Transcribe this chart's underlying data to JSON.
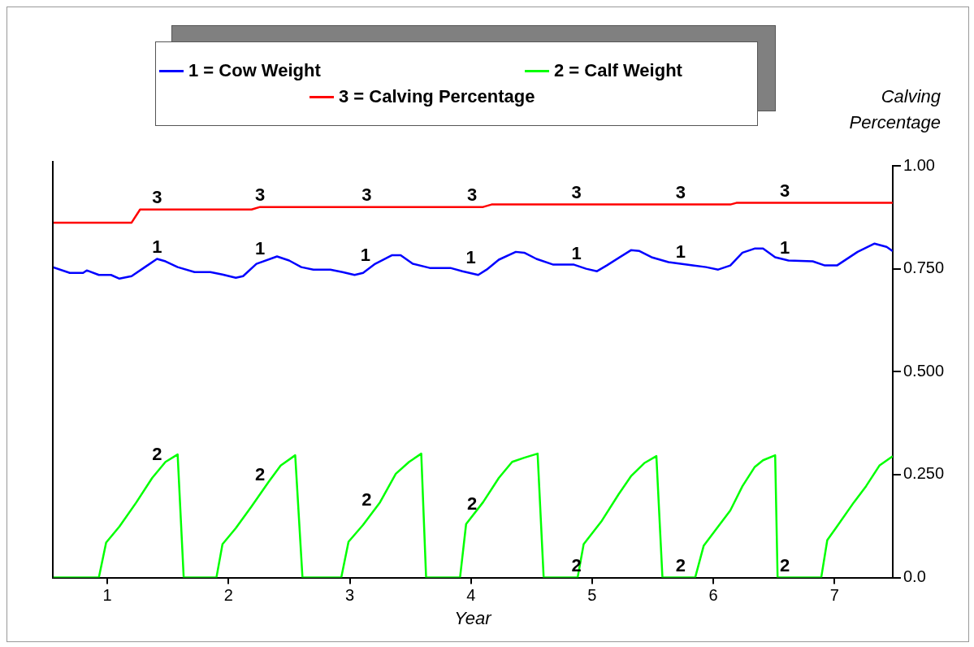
{
  "chart_data": {
    "type": "line",
    "xlabel": "Year",
    "ylabel": "Calving Percentage",
    "xlim": [
      0.55,
      7.48
    ],
    "xticks": [
      1,
      2,
      3,
      4,
      5,
      6,
      7
    ],
    "ylim": [
      0,
      1
    ],
    "yticks": [
      {
        "value": 0,
        "label": "0.0"
      },
      {
        "value": 0.25,
        "label": "0.250"
      },
      {
        "value": 0.5,
        "label": "0.500"
      },
      {
        "value": 0.75,
        "label": "0.750"
      },
      {
        "value": 1,
        "label": "1.00"
      }
    ],
    "grid": false,
    "legend": "top",
    "series": [
      {
        "name": "1 = Cow Weight",
        "color": "#0000ff",
        "x": [
          0.55,
          0.69,
          0.8,
          0.83,
          0.93,
          1.03,
          1.1,
          1.2,
          1.31,
          1.41,
          1.48,
          1.58,
          1.72,
          1.85,
          1.95,
          2.06,
          2.12,
          2.23,
          2.4,
          2.5,
          2.6,
          2.7,
          2.84,
          2.94,
          3.04,
          3.11,
          3.21,
          3.35,
          3.42,
          3.52,
          3.66,
          3.83,
          3.93,
          4.06,
          4.13,
          4.23,
          4.37,
          4.44,
          4.54,
          4.68,
          4.85,
          4.95,
          5.04,
          5.12,
          5.32,
          5.39,
          5.49,
          5.63,
          5.73,
          5.83,
          5.94,
          6.04,
          6.14,
          6.24,
          6.34,
          6.41,
          6.51,
          6.62,
          6.82,
          6.92,
          7.02,
          7.19,
          7.33,
          7.43,
          7.48
        ],
        "values": [
          0.754,
          0.74,
          0.74,
          0.746,
          0.735,
          0.735,
          0.726,
          0.732,
          0.754,
          0.774,
          0.768,
          0.754,
          0.742,
          0.742,
          0.736,
          0.728,
          0.732,
          0.762,
          0.78,
          0.77,
          0.754,
          0.748,
          0.748,
          0.742,
          0.735,
          0.74,
          0.762,
          0.783,
          0.783,
          0.762,
          0.752,
          0.752,
          0.744,
          0.735,
          0.748,
          0.772,
          0.791,
          0.789,
          0.774,
          0.76,
          0.76,
          0.75,
          0.744,
          0.758,
          0.795,
          0.793,
          0.778,
          0.766,
          0.762,
          0.758,
          0.754,
          0.748,
          0.758,
          0.789,
          0.799,
          0.799,
          0.778,
          0.77,
          0.768,
          0.758,
          0.758,
          0.791,
          0.811,
          0.803,
          0.793
        ]
      },
      {
        "name": "2 = Calf Weight",
        "color": "#00ff00",
        "x": [
          0.55,
          0.93,
          0.99,
          1.1,
          1.24,
          1.37,
          1.48,
          1.58,
          1.63,
          1.9,
          1.95,
          2.06,
          2.19,
          2.33,
          2.43,
          2.55,
          2.61,
          2.93,
          2.99,
          3.11,
          3.25,
          3.38,
          3.49,
          3.59,
          3.63,
          3.91,
          3.96,
          4.1,
          4.23,
          4.34,
          4.44,
          4.55,
          4.6,
          4.88,
          4.93,
          5.08,
          5.22,
          5.32,
          5.43,
          5.53,
          5.58,
          5.85,
          5.92,
          6.04,
          6.14,
          6.24,
          6.34,
          6.41,
          6.51,
          6.53,
          6.89,
          6.94,
          7.02,
          7.16,
          7.26,
          7.37,
          7.48
        ],
        "values": [
          0,
          0,
          0.085,
          0.124,
          0.183,
          0.242,
          0.281,
          0.299,
          0,
          0,
          0.081,
          0.12,
          0.173,
          0.232,
          0.272,
          0.297,
          0,
          0,
          0.087,
          0.128,
          0.183,
          0.252,
          0.281,
          0.301,
          0,
          0,
          0.13,
          0.183,
          0.242,
          0.281,
          0.291,
          0.301,
          0,
          0,
          0.081,
          0.138,
          0.203,
          0.246,
          0.278,
          0.295,
          0,
          0,
          0.077,
          0.124,
          0.163,
          0.222,
          0.268,
          0.285,
          0.297,
          0,
          0,
          0.091,
          0.124,
          0.183,
          0.222,
          0.272,
          0.295
        ]
      },
      {
        "name": "3 = Calving Percentage",
        "color": "#ff0000",
        "x": [
          0.55,
          1.2,
          1.27,
          2.19,
          2.26,
          4.1,
          4.17,
          6.14,
          6.19,
          7.48
        ],
        "values": [
          0.862,
          0.862,
          0.894,
          0.894,
          0.9,
          0.9,
          0.906,
          0.906,
          0.91,
          0.91
        ]
      }
    ],
    "annotations": [
      {
        "text": "1",
        "x": 1.41,
        "y": 0.774
      },
      {
        "text": "1",
        "x": 2.26,
        "y": 0.77
      },
      {
        "text": "1",
        "x": 3.13,
        "y": 0.754
      },
      {
        "text": "1",
        "x": 4.0,
        "y": 0.748
      },
      {
        "text": "1",
        "x": 4.87,
        "y": 0.758
      },
      {
        "text": "1",
        "x": 5.73,
        "y": 0.762
      },
      {
        "text": "1",
        "x": 6.59,
        "y": 0.772
      },
      {
        "text": "2",
        "x": 1.41,
        "y": 0.27
      },
      {
        "text": "2",
        "x": 2.26,
        "y": 0.22
      },
      {
        "text": "2",
        "x": 3.14,
        "y": 0.16
      },
      {
        "text": "2",
        "x": 4.01,
        "y": 0.15
      },
      {
        "text": "2",
        "x": 4.87,
        "y": 0
      },
      {
        "text": "2",
        "x": 5.73,
        "y": 0
      },
      {
        "text": "2",
        "x": 6.59,
        "y": 0
      },
      {
        "text": "3",
        "x": 1.41,
        "y": 0.894
      },
      {
        "text": "3",
        "x": 2.26,
        "y": 0.9
      },
      {
        "text": "3",
        "x": 3.14,
        "y": 0.9
      },
      {
        "text": "3",
        "x": 4.01,
        "y": 0.9
      },
      {
        "text": "3",
        "x": 4.87,
        "y": 0.906
      },
      {
        "text": "3",
        "x": 5.73,
        "y": 0.906
      },
      {
        "text": "3",
        "x": 6.59,
        "y": 0.91
      }
    ]
  }
}
